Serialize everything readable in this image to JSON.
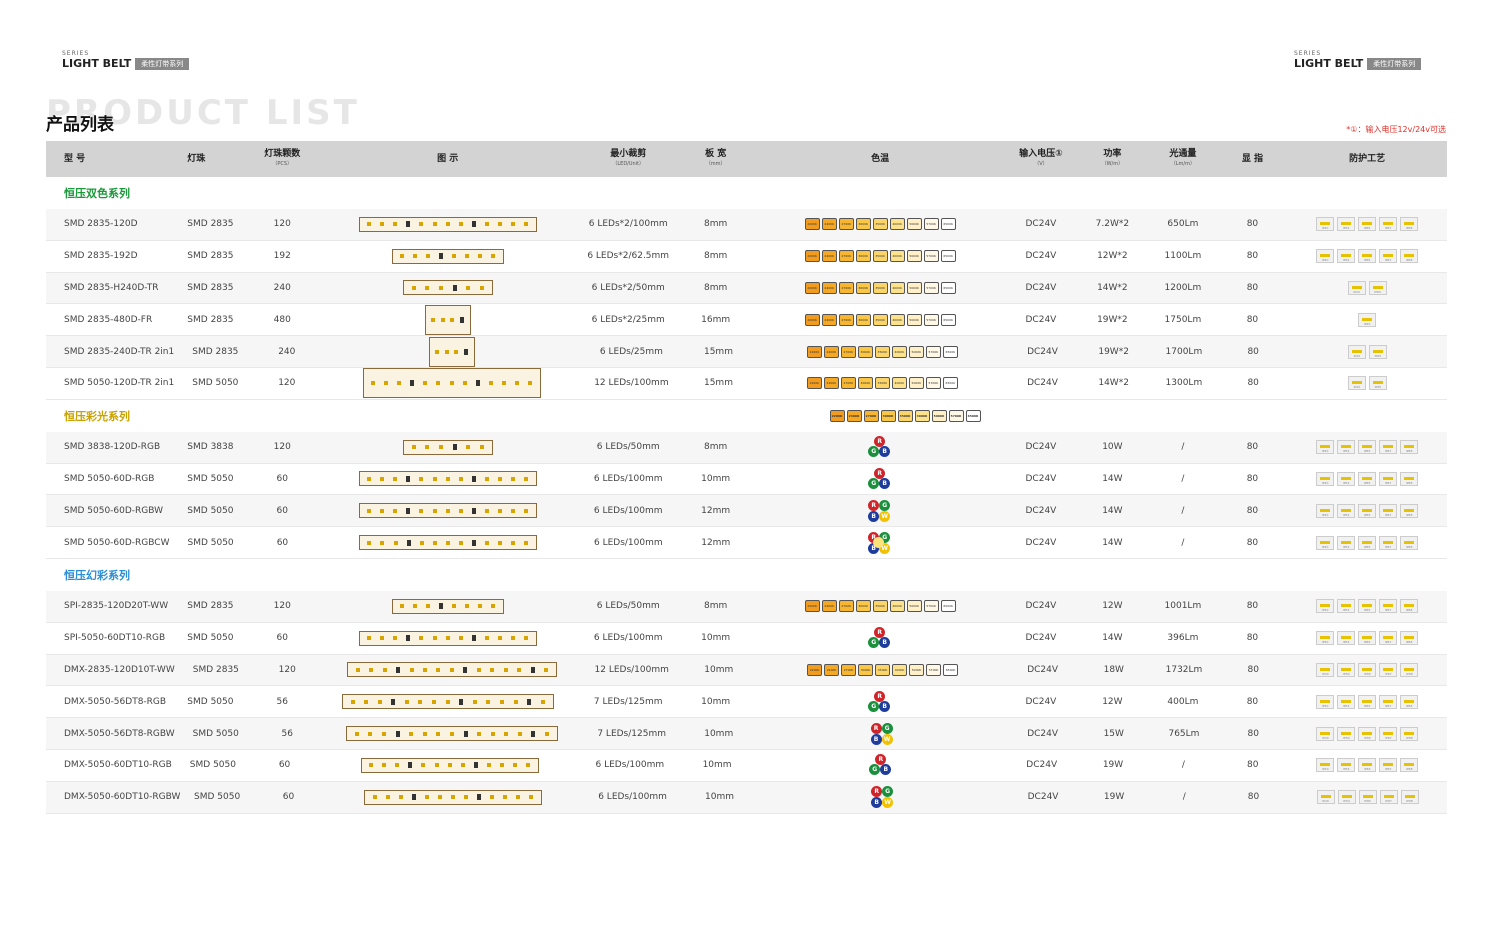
{
  "header": {
    "series_small": "SERIES",
    "series_title": "LIGHT BELT",
    "series_tag": "柔性灯带系列"
  },
  "product_list_bg": "PRODUCT LIST",
  "title": "产品列表",
  "note": "*①：输入电压12v/24v可选",
  "columns": [
    {
      "label": "型 号",
      "sub": ""
    },
    {
      "label": "灯珠",
      "sub": ""
    },
    {
      "label": "灯珠颗数",
      "sub": "（PCS）"
    },
    {
      "label": "图 示",
      "sub": ""
    },
    {
      "label": "最小裁剪",
      "sub": "（LED/Unit）"
    },
    {
      "label": "板 宽",
      "sub": "（mm）"
    },
    {
      "label": "色温",
      "sub": ""
    },
    {
      "label": "输入电压①",
      "sub": "（V）"
    },
    {
      "label": "功率",
      "sub": "（W/m）"
    },
    {
      "label": "光通量",
      "sub": "（Lm/m）"
    },
    {
      "label": "显 指",
      "sub": ""
    },
    {
      "label": "防护工艺",
      "sub": ""
    }
  ],
  "temp_labels": [
    "2200K",
    "2400K",
    "2700K",
    "3000K",
    "3500K",
    "4000K",
    "5000K",
    "5700K",
    "6500K"
  ],
  "ip_labels": [
    "IP20",
    "IP54",
    "IP65",
    "IP67",
    "IP68"
  ],
  "colors": {
    "group_green": "#1a9a3a",
    "group_gold": "#c9a200",
    "group_blue": "#2a8ed6",
    "rgb_r": "#d0242b",
    "rgb_g": "#1a8f3c",
    "rgb_b": "#1e3c9c",
    "rgb_w": "#f2c200"
  },
  "groups": [
    {
      "name": "恒压双色系列",
      "color": "group_green",
      "rows": [
        {
          "model": "SMD 2835-120D",
          "chip": "SMD 2835",
          "pcs": "120",
          "cut": "6 LEDs*2/100mm",
          "width": "8mm",
          "cct": "temps",
          "volt": "DC24V",
          "power": "7.2W*2",
          "lm": "650Lm",
          "cri": "80",
          "ip": 5,
          "strip_w": 178,
          "tall": false
        },
        {
          "model": "SMD 2835-192D",
          "chip": "SMD 2835",
          "pcs": "192",
          "cut": "6 LEDs*2/62.5mm",
          "width": "8mm",
          "cct": "temps",
          "volt": "DC24V",
          "power": "12W*2",
          "lm": "1100Lm",
          "cri": "80",
          "ip": 5,
          "strip_w": 112,
          "tall": false
        },
        {
          "model": "SMD 2835-H240D-TR",
          "chip": "SMD 2835",
          "pcs": "240",
          "cut": "6 LEDs*2/50mm",
          "width": "8mm",
          "cct": "temps",
          "volt": "DC24V",
          "power": "14W*2",
          "lm": "1200Lm",
          "cri": "80",
          "ip": 2,
          "strip_w": 90,
          "tall": false
        },
        {
          "model": "SMD 2835-480D-FR",
          "chip": "SMD 2835",
          "pcs": "480",
          "cut": "6 LEDs*2/25mm",
          "width": "16mm",
          "cct": "temps",
          "volt": "DC24V",
          "power": "19W*2",
          "lm": "1750Lm",
          "cri": "80",
          "ip": 1,
          "strip_w": 46,
          "tall": true
        },
        {
          "model": "SMD 2835-240D-TR 2in1",
          "chip": "SMD 2835",
          "pcs": "240",
          "cut": "6 LEDs/25mm",
          "width": "15mm",
          "cct": "temps",
          "volt": "DC24V",
          "power": "19W*2",
          "lm": "1700Lm",
          "cri": "80",
          "ip": 2,
          "strip_w": 46,
          "tall": true
        },
        {
          "model": "SMD 5050-120D-TR 2in1",
          "chip": "SMD 5050",
          "pcs": "120",
          "cut": "12 LEDs/100mm",
          "width": "15mm",
          "cct": "temps",
          "volt": "DC24V",
          "power": "14W*2",
          "lm": "1300Lm",
          "cri": "80",
          "ip": 2,
          "strip_w": 178,
          "tall": true
        }
      ]
    },
    {
      "name": "恒压彩光系列",
      "color": "group_gold",
      "temps": true,
      "rows": [
        {
          "model": "SMD 3838-120D-RGB",
          "chip": "SMD 3838",
          "pcs": "120",
          "cut": "6 LEDs/50mm",
          "width": "8mm",
          "cct": "rgb",
          "volt": "DC24V",
          "power": "10W",
          "lm": "/",
          "cri": "80",
          "ip": 5,
          "strip_w": 90,
          "tall": false
        },
        {
          "model": "SMD 5050-60D-RGB",
          "chip": "SMD 5050",
          "pcs": "60",
          "cut": "6 LEDs/100mm",
          "width": "10mm",
          "cct": "rgb",
          "volt": "DC24V",
          "power": "14W",
          "lm": "/",
          "cri": "80",
          "ip": 5,
          "strip_w": 178,
          "tall": false
        },
        {
          "model": "SMD 5050-60D-RGBW",
          "chip": "SMD 5050",
          "pcs": "60",
          "cut": "6 LEDs/100mm",
          "width": "12mm",
          "cct": "rgbw",
          "volt": "DC24V",
          "power": "14W",
          "lm": "/",
          "cri": "80",
          "ip": 5,
          "strip_w": 178,
          "tall": false
        },
        {
          "model": "SMD 5050-60D-RGBCW",
          "chip": "SMD 5050",
          "pcs": "60",
          "cut": "6 LEDs/100mm",
          "width": "12mm",
          "cct": "rgbcw",
          "volt": "DC24V",
          "power": "14W",
          "lm": "/",
          "cri": "80",
          "ip": 5,
          "strip_w": 178,
          "tall": false
        }
      ]
    },
    {
      "name": "恒压幻彩系列",
      "color": "group_blue",
      "rows": [
        {
          "model": "SPI-2835-120D20T-WW",
          "chip": "SMD 2835",
          "pcs": "120",
          "cut": "6 LEDs/50mm",
          "width": "8mm",
          "cct": "temps",
          "volt": "DC24V",
          "power": "12W",
          "lm": "1001Lm",
          "cri": "80",
          "ip": 5,
          "strip_w": 112,
          "tall": false
        },
        {
          "model": "SPI-5050-60DT10-RGB",
          "chip": "SMD 5050",
          "pcs": "60",
          "cut": "6 LEDs/100mm",
          "width": "10mm",
          "cct": "rgb",
          "volt": "DC24V",
          "power": "14W",
          "lm": "396Lm",
          "cri": "80",
          "ip": 5,
          "strip_w": 178,
          "tall": false
        },
        {
          "model": "DMX-2835-120D10T-WW",
          "chip": "SMD 2835",
          "pcs": "120",
          "cut": "12 LEDs/100mm",
          "width": "10mm",
          "cct": "temps",
          "volt": "DC24V",
          "power": "18W",
          "lm": "1732Lm",
          "cri": "80",
          "ip": 5,
          "strip_w": 210,
          "tall": false
        },
        {
          "model": "DMX-5050-56DT8-RGB",
          "chip": "SMD 5050",
          "pcs": "56",
          "cut": "7 LEDs/125mm",
          "width": "10mm",
          "cct": "rgb",
          "volt": "DC24V",
          "power": "12W",
          "lm": "400Lm",
          "cri": "80",
          "ip": 5,
          "strip_w": 212,
          "tall": false
        },
        {
          "model": "DMX-5050-56DT8-RGBW",
          "chip": "SMD 5050",
          "pcs": "56",
          "cut": "7 LEDs/125mm",
          "width": "10mm",
          "cct": "rgbw",
          "volt": "DC24V",
          "power": "15W",
          "lm": "765Lm",
          "cri": "80",
          "ip": 5,
          "strip_w": 212,
          "tall": false
        },
        {
          "model": "DMX-5050-60DT10-RGB",
          "chip": "SMD 5050",
          "pcs": "60",
          "cut": "6 LEDs/100mm",
          "width": "10mm",
          "cct": "rgb",
          "volt": "DC24V",
          "power": "19W",
          "lm": "/",
          "cri": "80",
          "ip": 5,
          "strip_w": 178,
          "tall": false
        },
        {
          "model": "DMX-5050-60DT10-RGBW",
          "chip": "SMD 5050",
          "pcs": "60",
          "cut": "6 LEDs/100mm",
          "width": "10mm",
          "cct": "rgbw",
          "volt": "DC24V",
          "power": "19W",
          "lm": "/",
          "cri": "80",
          "ip": 5,
          "strip_w": 178,
          "tall": false
        }
      ]
    }
  ]
}
